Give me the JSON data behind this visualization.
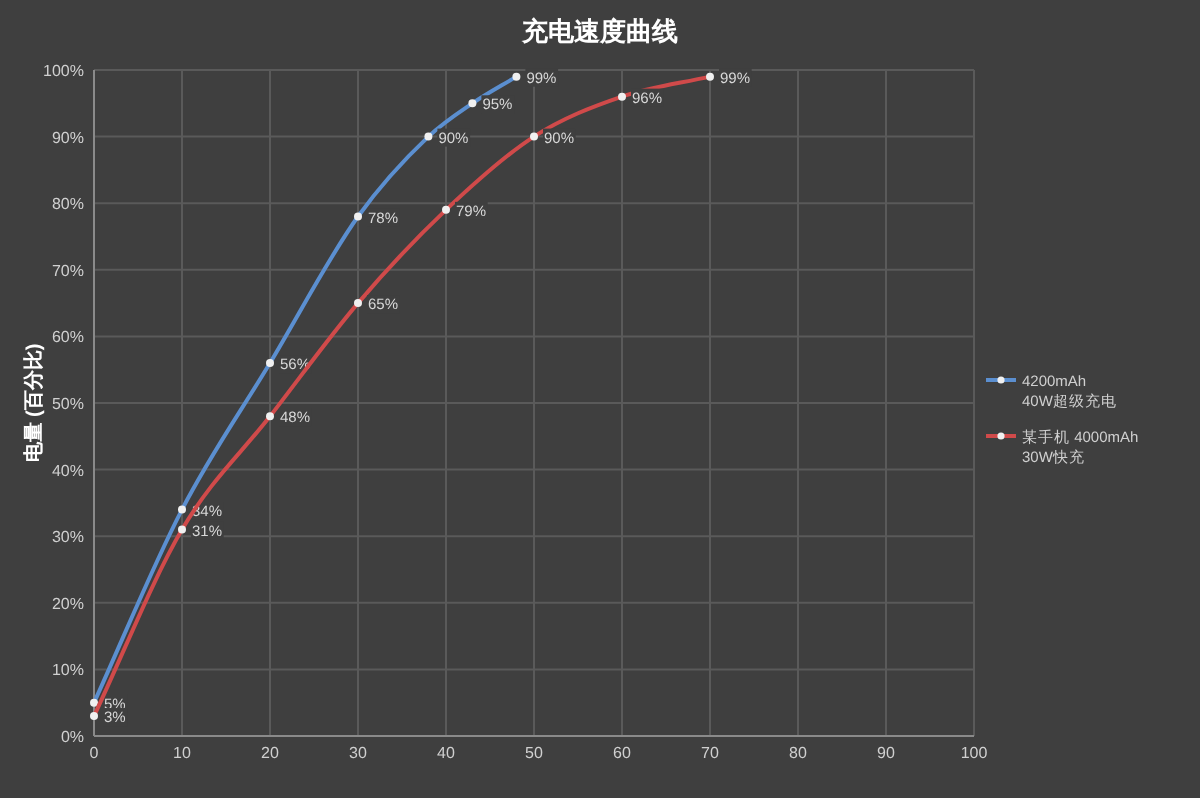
{
  "chart_data": {
    "type": "line",
    "title": "充电速度曲线",
    "ylabel": "电量 (百分比)",
    "xlim": [
      0,
      100
    ],
    "xticks": [
      0,
      10,
      20,
      30,
      40,
      50,
      60,
      70,
      80,
      90,
      100
    ],
    "ylim": [
      0,
      100
    ],
    "yticks": [
      {
        "value": 0,
        "label": "0%"
      },
      {
        "value": 10,
        "label": "10%"
      },
      {
        "value": 20,
        "label": "20%"
      },
      {
        "value": 30,
        "label": "30%"
      },
      {
        "value": 40,
        "label": "40%"
      },
      {
        "value": 50,
        "label": "50%"
      },
      {
        "value": 60,
        "label": "60%"
      },
      {
        "value": 70,
        "label": "70%"
      },
      {
        "value": 80,
        "label": "80%"
      },
      {
        "value": 90,
        "label": "90%"
      },
      {
        "value": 100,
        "label": "100%"
      }
    ],
    "grid": true,
    "legend": "right",
    "marker": "circle",
    "line_style": "solid",
    "series": [
      {
        "name": "4200mAh 40W超级充电",
        "color": "#5b8fd0",
        "x": [
          0,
          10,
          20,
          30,
          38,
          43,
          48
        ],
        "values": [
          5,
          34,
          56,
          78,
          90,
          95,
          99
        ],
        "value_labels": [
          "5%",
          "34%",
          "56%",
          "78%",
          "90%",
          "95%",
          "99%"
        ]
      },
      {
        "name": "某手机 4000mAh 30W快充",
        "color": "#d04a4a",
        "x": [
          0,
          10,
          20,
          30,
          40,
          50,
          60,
          70
        ],
        "values": [
          3,
          31,
          48,
          65,
          79,
          90,
          96,
          99
        ],
        "value_labels": [
          "3%",
          "31%",
          "48%",
          "65%",
          "79%",
          "90%",
          "96%",
          "99%"
        ]
      }
    ]
  }
}
